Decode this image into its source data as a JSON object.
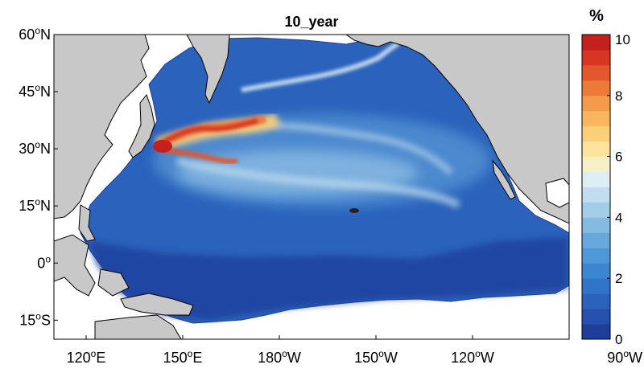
{
  "map": {
    "title": "10_year",
    "extent": {
      "lon": [
        110,
        270
      ],
      "lat": [
        -20,
        60
      ]
    },
    "y_ticks": [
      {
        "lat": 60,
        "deg": "60",
        "hemi": "N"
      },
      {
        "lat": 45,
        "deg": "45",
        "hemi": "N"
      },
      {
        "lat": 30,
        "deg": "30",
        "hemi": "N"
      },
      {
        "lat": 15,
        "deg": "15",
        "hemi": "N"
      },
      {
        "lat": 0,
        "deg": "0",
        "hemi": ""
      },
      {
        "lat": -15,
        "deg": "15",
        "hemi": "S"
      }
    ],
    "x_ticks": [
      {
        "lon": 120,
        "deg": "120",
        "hemi": "E"
      },
      {
        "lon": 150,
        "deg": "150",
        "hemi": "E"
      },
      {
        "lon": 180,
        "deg": "180",
        "hemi": "W"
      },
      {
        "lon": 210,
        "deg": "150",
        "hemi": "W"
      },
      {
        "lon": 240,
        "deg": "120",
        "hemi": "W"
      },
      {
        "lon": 270,
        "deg": "90",
        "hemi": "W"
      }
    ],
    "colors": {
      "land": "#c8c8c8",
      "no_data": "#ffffff",
      "coast": "#000000"
    }
  },
  "colorbar": {
    "unit": "%",
    "min": 0,
    "max": 10,
    "ticks": [
      "0",
      "2",
      "4",
      "6",
      "8",
      "10"
    ],
    "colors": [
      "#1f3e9a",
      "#2550ad",
      "#2a62bc",
      "#2f74c8",
      "#3a86d0",
      "#4f98d7",
      "#67a9dd",
      "#83bbe3",
      "#a1cde9",
      "#c1ddef",
      "#dfeef5",
      "#f5f0c8",
      "#fde39b",
      "#fccf79",
      "#f9b65f",
      "#f49a4b",
      "#ec7a3a",
      "#e2572b",
      "#d63622",
      "#c4201d"
    ]
  }
}
